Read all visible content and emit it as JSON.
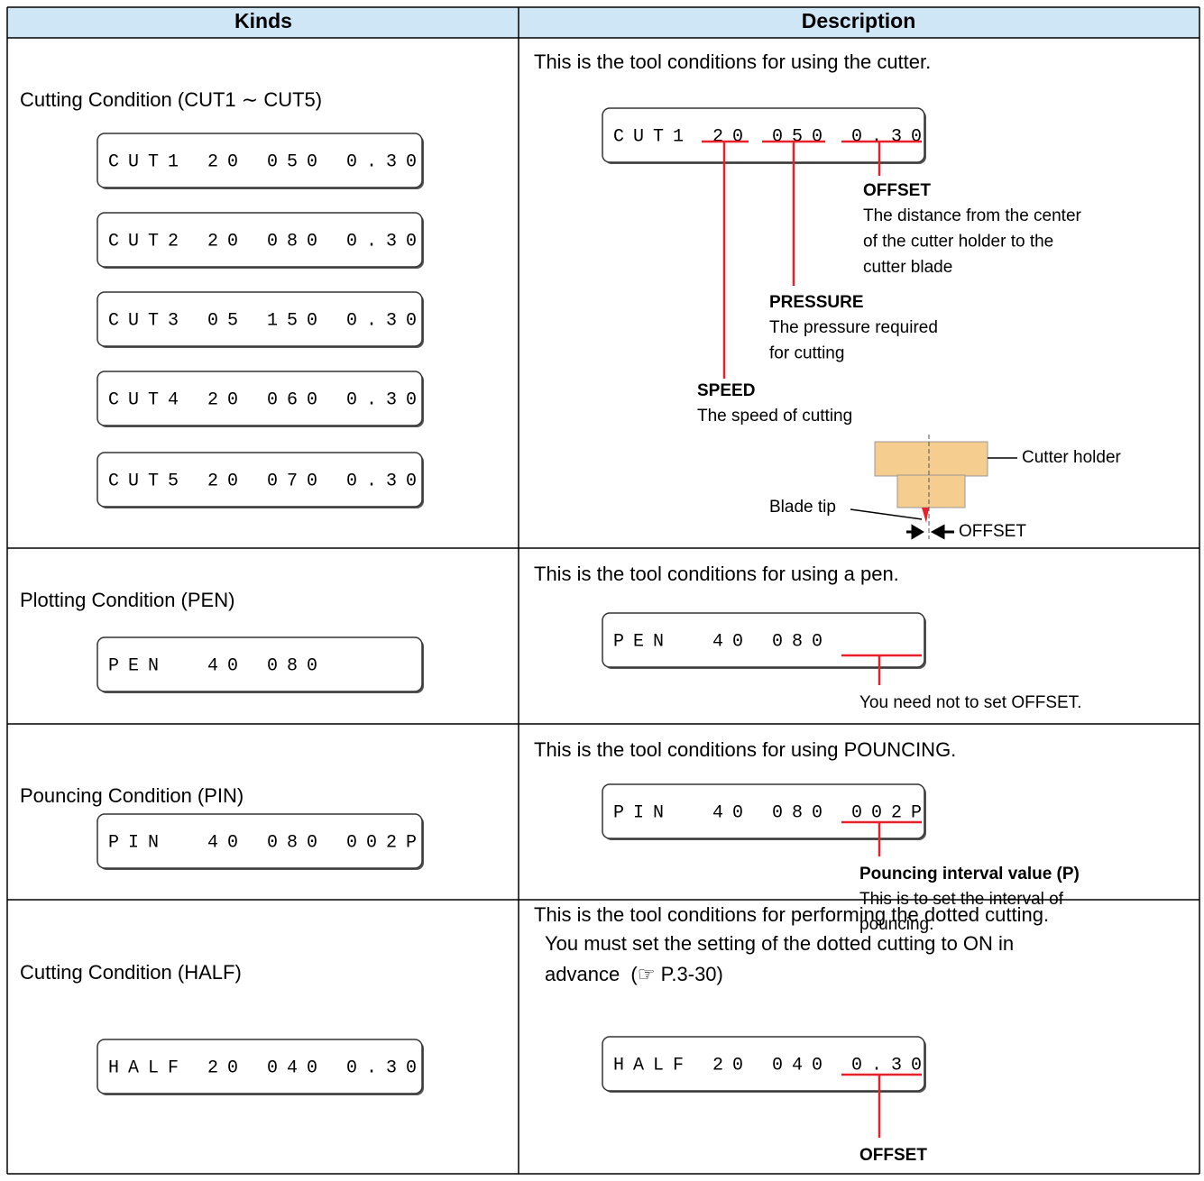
{
  "table": {
    "headers": [
      "Kinds",
      "Description"
    ],
    "rows": [
      {
        "kind": "Cutting Condition (CUT1 ∼ CUT5)",
        "displays": [
          "CUT1 20 050 0.30",
          "CUT2 20 080 0.30",
          "CUT3 05 150 0.30",
          "CUT4 20 060 0.30",
          "CUT5 20 070 0.30"
        ],
        "description": [
          "This is the tool conditions for using the cutter."
        ],
        "diagram": {
          "display": "CUT1 20 050 0.30",
          "callouts": [
            {
              "title": "OFFSET",
              "text": [
                "The distance from the center",
                "of the cutter holder to the",
                "cutter blade"
              ]
            },
            {
              "title": "PRESSURE",
              "text": [
                "The pressure required",
                "for cutting"
              ]
            },
            {
              "title": "SPEED",
              "text": [
                "The speed of cutting"
              ]
            }
          ],
          "figure": {
            "holder": "Cutter holder",
            "tip": "Blade tip",
            "offset": "OFFSET"
          }
        }
      },
      {
        "kind": "Plotting Condition (PEN)",
        "displays": [
          "PEN  40 080"
        ],
        "description": [
          "This is the tool conditions for using a pen."
        ],
        "diagram": {
          "display": "PEN  40 080",
          "callouts": [
            {
              "text": [
                "You need not to set OFFSET."
              ]
            }
          ]
        }
      },
      {
        "kind": "Pouncing Condition (PIN)",
        "displays": [
          "PIN  40 080 002P"
        ],
        "description": [
          "This is the tool conditions for using POUNCING."
        ],
        "diagram": {
          "display": "PIN  40 080 002P",
          "callouts": [
            {
              "title": "Pouncing interval value (P)",
              "text": [
                "This is to set the interval of",
                "pouncing."
              ]
            }
          ]
        }
      },
      {
        "kind": "Cutting Condition (HALF)",
        "displays": [
          "HALF 20 040 0.30"
        ],
        "description": [
          "This is the tool conditions for performing the dotted cutting.",
          "You must set the setting of the dotted cutting to ON in",
          "advance  (☞ P.3-30)"
        ],
        "diagram": {
          "display": "HALF 20 040 0.30",
          "callouts": [
            {
              "title": "OFFSET"
            }
          ]
        }
      }
    ]
  }
}
